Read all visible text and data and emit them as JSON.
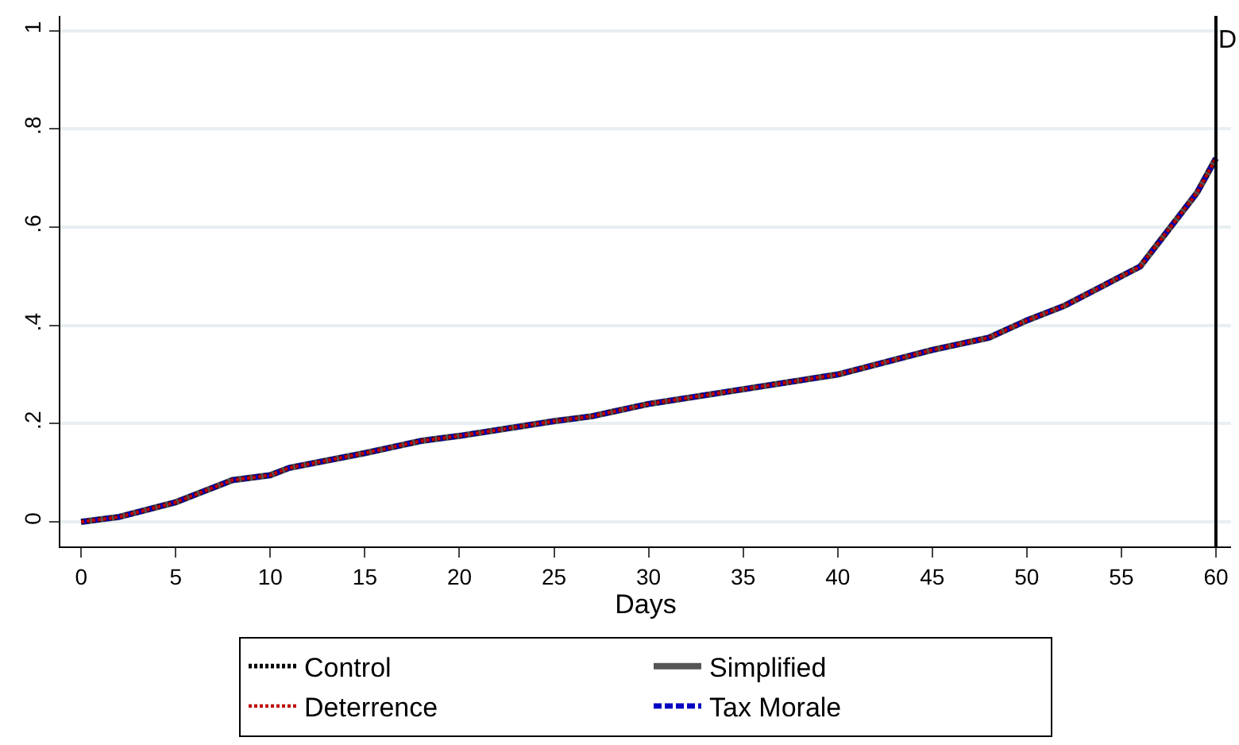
{
  "chart_data": {
    "type": "line",
    "xlabel": "Days",
    "x": [
      0,
      2,
      5,
      7,
      8,
      10,
      11,
      15,
      18,
      20,
      25,
      27,
      30,
      35,
      40,
      45,
      48,
      50,
      52,
      54,
      55,
      56,
      57,
      58,
      59,
      60
    ],
    "series": [
      {
        "name": "Control",
        "color": "#000000",
        "line_style": "dotted",
        "values": [
          0,
          0.01,
          0.04,
          0.07,
          0.085,
          0.095,
          0.11,
          0.14,
          0.165,
          0.175,
          0.205,
          0.215,
          0.24,
          0.27,
          0.3,
          0.35,
          0.375,
          0.41,
          0.44,
          0.48,
          0.5,
          0.52,
          0.57,
          0.62,
          0.67,
          0.74
        ]
      },
      {
        "name": "Simplified",
        "color": "#555555",
        "line_style": "solid",
        "values": [
          0,
          0.01,
          0.04,
          0.07,
          0.085,
          0.095,
          0.11,
          0.14,
          0.165,
          0.175,
          0.205,
          0.215,
          0.24,
          0.27,
          0.3,
          0.35,
          0.375,
          0.41,
          0.44,
          0.48,
          0.5,
          0.52,
          0.57,
          0.62,
          0.67,
          0.74
        ]
      },
      {
        "name": "Deterrence",
        "color": "#c00000",
        "line_style": "dotted",
        "values": [
          0,
          0.01,
          0.04,
          0.07,
          0.085,
          0.095,
          0.11,
          0.14,
          0.165,
          0.175,
          0.205,
          0.215,
          0.24,
          0.27,
          0.3,
          0.35,
          0.375,
          0.41,
          0.44,
          0.48,
          0.5,
          0.52,
          0.57,
          0.62,
          0.67,
          0.74
        ]
      },
      {
        "name": "Tax Morale",
        "color": "#0000c0",
        "line_style": "dashed",
        "values": [
          0,
          0.01,
          0.04,
          0.07,
          0.085,
          0.095,
          0.11,
          0.14,
          0.165,
          0.175,
          0.205,
          0.215,
          0.24,
          0.27,
          0.3,
          0.35,
          0.375,
          0.41,
          0.44,
          0.48,
          0.5,
          0.52,
          0.57,
          0.62,
          0.67,
          0.74
        ]
      }
    ],
    "xlim": [
      -1.1,
      60.8
    ],
    "xticks": [
      0,
      5,
      10,
      15,
      20,
      25,
      30,
      35,
      40,
      45,
      50,
      55,
      60
    ],
    "ylim": [
      -0.05,
      1.03
    ],
    "yticks": [
      0,
      {
        "value": 0.2,
        "label": ".2"
      },
      {
        "value": 0.4,
        "label": ".4"
      },
      {
        "value": 0.6,
        "label": ".6"
      },
      {
        "value": 0.8,
        "label": ".8"
      },
      1
    ],
    "grid": "y",
    "legend": "bottom",
    "ref_lines": [
      {
        "axis": "x",
        "value": 60,
        "label": "D",
        "color": "#000000",
        "line_style": "solid"
      }
    ]
  }
}
